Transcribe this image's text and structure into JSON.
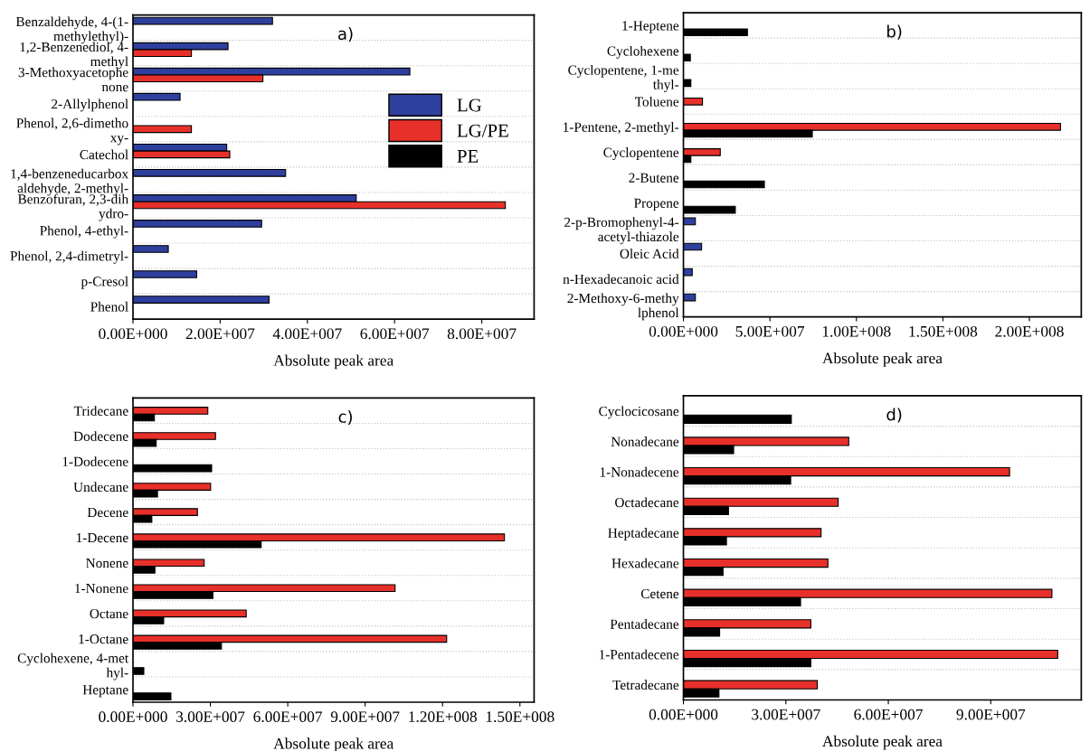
{
  "chart_data": [
    {
      "type": "bar",
      "orientation": "horizontal",
      "title": "a)",
      "xlabel": "Absolute peak area",
      "legend": "center right",
      "grid": "y",
      "categories": [
        "Benzaldehyde, 4-(1-\nmethylethyl)-",
        "1,2-Benzenediol, 4-\nmethyl",
        "3-Methoxyacetophe\nnone",
        "2-Allylphenol",
        "Phenol, 2,6-dimetho\nxy-",
        "Catechol",
        "1,4-benzeneducarbox\naldehyde, 2-methyl-",
        "Benzofuran, 2,3-dih\nydro-",
        "Phenol, 4-ethyl-",
        "Phenol, 2,4-dimetryl-",
        "p-Cresol",
        "Phenol"
      ],
      "xlim": [
        0,
        92000000.0
      ],
      "xticks": [
        {
          "value": 0,
          "label": "0.00E+000"
        },
        {
          "value": 20000000.0,
          "label": "2.00E+007"
        },
        {
          "value": 40000000.0,
          "label": "4.00E+007"
        },
        {
          "value": 60000000.0,
          "label": "6.00E+007"
        },
        {
          "value": 80000000.0,
          "label": "8.00E+007"
        }
      ],
      "series": [
        {
          "name": "LG",
          "color": "#2e3f9e",
          "values": [
            32000000.0,
            21800000.0,
            63500000.0,
            10800000.0,
            null,
            21500000.0,
            35000000.0,
            51200000.0,
            29500000.0,
            8100000.0,
            14600000.0,
            31200000.0
          ]
        },
        {
          "name": "LG/PE",
          "color": "#e8302a",
          "values": [
            null,
            13400000.0,
            29800000.0,
            null,
            13400000.0,
            22200000.0,
            null,
            85400000.0,
            null,
            null,
            null,
            null
          ]
        },
        {
          "name": "PE",
          "color": "#000000",
          "values": [
            null,
            null,
            null,
            null,
            null,
            null,
            null,
            null,
            null,
            null,
            null,
            null
          ]
        }
      ]
    },
    {
      "type": "bar",
      "orientation": "horizontal",
      "title": "b)",
      "xlabel": "Absolute peak area",
      "grid": "y",
      "categories": [
        "1-Heptene",
        "Cyclohexene",
        "Cyclopentene, 1-me\nthyl-",
        "Toluene",
        "1-Pentene, 2-methyl-",
        "Cyclopentene",
        "2-Butene",
        "Propene",
        "2-p-Bromophenyl-4-\nacetyl-thiazole",
        "Oleic Acid",
        "n-Hexadecanoic acid",
        "2-Methoxy-6-methy\nlphenol"
      ],
      "xlim": [
        0,
        230000000.0
      ],
      "xticks": [
        {
          "value": 0,
          "label": "0.00E+000"
        },
        {
          "value": 50000000.0,
          "label": "5.00E+007"
        },
        {
          "value": 100000000.0,
          "label": "1.00E+008"
        },
        {
          "value": 150000000.0,
          "label": "1.50E+008"
        },
        {
          "value": 200000000.0,
          "label": "2.00E+008"
        }
      ],
      "series": [
        {
          "color": "#2e3f9e",
          "values": [
            null,
            null,
            null,
            null,
            null,
            null,
            null,
            null,
            6900000.0,
            10500000.0,
            5100000.0,
            6900000.0
          ]
        },
        {
          "color": "#e8302a",
          "values": [
            null,
            null,
            null,
            11000000.0,
            218000000.0,
            21300000.0,
            null,
            null,
            null,
            null,
            null,
            null
          ]
        },
        {
          "color": "#000000",
          "values": [
            37000000.0,
            4000000.0,
            4300000.0,
            null,
            74500000.0,
            4300000.0,
            46800000.0,
            30000000.0,
            null,
            null,
            null,
            null
          ]
        }
      ]
    },
    {
      "type": "bar",
      "orientation": "horizontal",
      "title": "c)",
      "xlabel": "Absolute peak area",
      "grid": "y",
      "categories": [
        "Tridecane",
        "Dodecene",
        "1-Dodecene",
        "Undecane",
        "Decene",
        "1-Decene",
        "Nonene",
        "1-Nonene",
        "Octane",
        "1-Octane",
        "Cyclohexene, 4-met\nhyl-",
        "Heptane"
      ],
      "xlim": [
        0,
        155500000.0
      ],
      "xticks": [
        {
          "value": 0,
          "label": "0.00E+000"
        },
        {
          "value": 30000000.0,
          "label": "3.00E+007"
        },
        {
          "value": 60000000.0,
          "label": "6.00E+007"
        },
        {
          "value": 90000000.0,
          "label": "9.00E+007"
        },
        {
          "value": 120000000.0,
          "label": "1.20E+008"
        },
        {
          "value": 150000000.0,
          "label": "1.50E+008"
        }
      ],
      "series": [
        {
          "color": "#e8302a",
          "values": [
            29000000.0,
            32000000.0,
            null,
            30100000.0,
            25000000.0,
            144000000.0,
            27600000.0,
            101600000.0,
            43900000.0,
            121600000.0,
            null,
            null
          ]
        },
        {
          "color": "#000000",
          "values": [
            8300000.0,
            9000000.0,
            30500000.0,
            9500000.0,
            7300000.0,
            49700000.0,
            8500000.0,
            31000000.0,
            11900000.0,
            34300000.0,
            4200000.0,
            14700000.0
          ]
        }
      ]
    },
    {
      "type": "bar",
      "orientation": "horizontal",
      "title": "d)",
      "xlabel": "Absolute peak area",
      "grid": "y",
      "categories": [
        "Cyclocicosane",
        "Nonadecane",
        "1-Nonadecene",
        "Octadecane",
        "Heptadecane",
        "Hexadecane",
        "Cetene",
        "Pentadecane",
        "1-Pentadecene",
        "Tetradecane"
      ],
      "xlim": [
        0,
        116500000.0
      ],
      "xticks": [
        {
          "value": 0,
          "label": "0.00E+000"
        },
        {
          "value": 30000000.0,
          "label": "3.00E+007"
        },
        {
          "value": 60000000.0,
          "label": "6.00E+007"
        },
        {
          "value": 90000000.0,
          "label": "9.00E+007"
        }
      ],
      "series": [
        {
          "color": "#e8302a",
          "values": [
            null,
            48400000.0,
            95500000.0,
            45300000.0,
            40300000.0,
            42300000.0,
            107900000.0,
            37300000.0,
            109600000.0,
            39200000.0
          ]
        },
        {
          "color": "#000000",
          "values": [
            31600000.0,
            14700000.0,
            31400000.0,
            13200000.0,
            12600000.0,
            11600000.0,
            34300000.0,
            10600000.0,
            37300000.0,
            10400000.0
          ]
        }
      ]
    }
  ]
}
